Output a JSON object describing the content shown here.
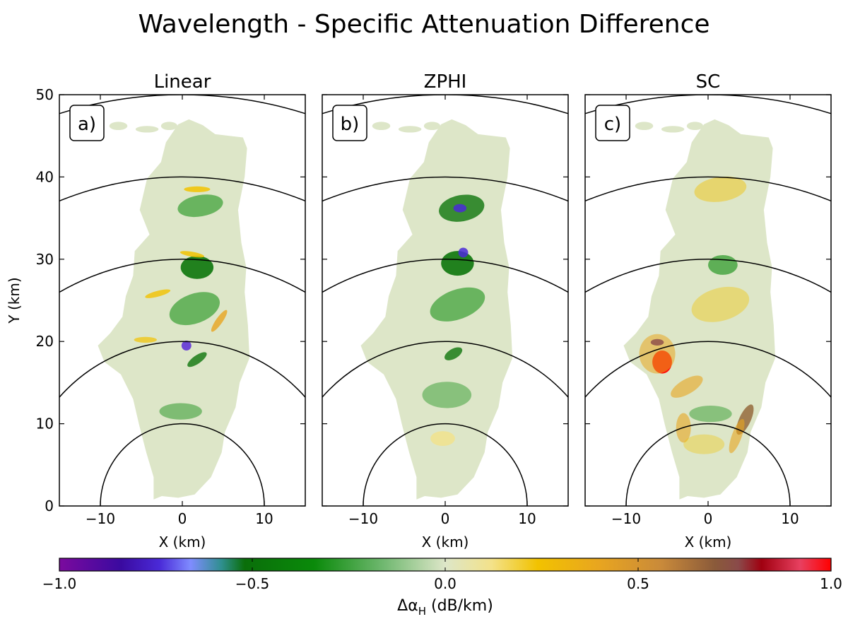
{
  "figure": {
    "title": "Wavelength - Specific Attenuation Difference"
  },
  "chart_data": {
    "type": "heatmap",
    "panels": [
      {
        "title": "Linear",
        "tag": "a)"
      },
      {
        "title": "ZPHI",
        "tag": "b)"
      },
      {
        "title": "SC",
        "tag": "c)"
      }
    ],
    "xlabel": "X (km)",
    "ylabel": "Y (km)",
    "xlim": [
      -15,
      15
    ],
    "ylim": [
      0,
      50
    ],
    "x_ticks": [
      -10,
      0,
      10
    ],
    "y_ticks": [
      0,
      10,
      20,
      30,
      40,
      50
    ],
    "x_tick_labels": [
      "−10",
      "0",
      "10"
    ],
    "y_tick_labels": [
      "0",
      "10",
      "20",
      "30",
      "40",
      "50"
    ],
    "range_rings_km": [
      10,
      20,
      30,
      40,
      50
    ],
    "colorbar": {
      "label_main": "Δα",
      "label_sub": "H",
      "label_unit": " (dB/km)",
      "min": -1.0,
      "max": 1.0,
      "ticks": [
        -1.0,
        -0.5,
        0.0,
        0.5,
        1.0
      ],
      "tick_labels": [
        "−1.0",
        "−0.5",
        "0.0",
        "0.5",
        "1.0"
      ]
    },
    "colors": {
      "background_echo": "#dde6c8",
      "negative_strong": "#7a00a8",
      "negative_mid": "#2a7fff",
      "negative_weak": "#007a00",
      "zero": "#dde6c8",
      "positive_weak": "#f2c200",
      "positive_mid": "#8b5a2b",
      "positive_strong": "#ff0000"
    }
  }
}
